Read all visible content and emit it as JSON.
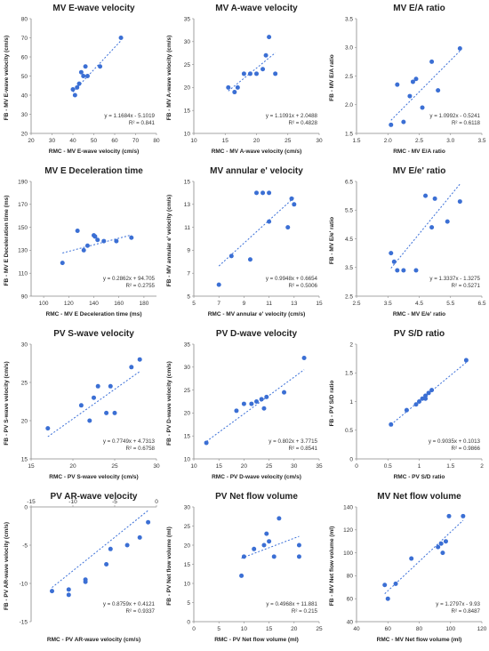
{
  "chart_data": [
    {
      "type": "scatter",
      "title": "MV E-wave velocity",
      "xlabel": "RMC - MV E-wave velocity (cm/s)",
      "ylabel": "FB - MV E-wave velocity (cm/s)",
      "xlim": [
        20,
        80
      ],
      "ylim": [
        20,
        80
      ],
      "xticks": [
        "20",
        "30",
        "40",
        "50",
        "60",
        "70",
        "80"
      ],
      "yticks": [
        "20",
        "30",
        "40",
        "50",
        "60",
        "70",
        "80"
      ],
      "equation": "y = 1.1684x - 5.1019",
      "r2": "R² = 0.841",
      "trend": {
        "slope": 1.1684,
        "intercept": -5.1019
      },
      "x": [
        40,
        41,
        42,
        43,
        44,
        45,
        46,
        47,
        53,
        63
      ],
      "y": [
        43,
        40,
        44,
        46,
        52,
        50,
        55,
        50,
        55,
        70
      ]
    },
    {
      "type": "scatter",
      "title": "MV A-wave velocity",
      "xlabel": "RMC - MV A-wave velocity (cm/s)",
      "ylabel": "FB - MV A-wave velocity (cm/s)",
      "xlim": [
        10,
        30
      ],
      "ylim": [
        10,
        35
      ],
      "xticks": [
        "10",
        "15",
        "20",
        "25",
        "30"
      ],
      "yticks": [
        "10",
        "15",
        "20",
        "25",
        "30",
        "35"
      ],
      "equation": "y = 1.1091x + 2.0488",
      "r2": "R² = 0.4828",
      "trend": {
        "slope": 1.1091,
        "intercept": 2.0488
      },
      "x": [
        15.5,
        16.5,
        17,
        18,
        19,
        20,
        21,
        21.5,
        22,
        23
      ],
      "y": [
        20,
        19,
        20,
        23,
        23,
        23,
        24,
        27,
        31,
        23
      ]
    },
    {
      "type": "scatter",
      "title": "MV E/A ratio",
      "xlabel": "RMC - MV E/A ratio",
      "ylabel": "FB - MV E/A ratio",
      "xlim": [
        1.5,
        3.5
      ],
      "ylim": [
        1.5,
        3.5
      ],
      "xticks": [
        "1.5",
        "2.0",
        "2.5",
        "3.0",
        "3.5"
      ],
      "yticks": [
        "1.5",
        "2.0",
        "2.5",
        "3.0",
        "3.5"
      ],
      "equation": "y = 1.0992x - 0.5241",
      "r2": "R² = 0.6118",
      "trend": {
        "slope": 1.0992,
        "intercept": -0.5241
      },
      "x": [
        2.05,
        2.15,
        2.25,
        2.35,
        2.4,
        2.45,
        2.55,
        2.7,
        2.8,
        3.15
      ],
      "y": [
        1.65,
        2.35,
        1.7,
        2.15,
        2.4,
        2.45,
        1.95,
        2.75,
        2.25,
        2.98
      ]
    },
    {
      "type": "scatter",
      "title": "MV E Deceleration time",
      "xlabel": "RMC - MV E Deceleration time (ms)",
      "ylabel": "FB - MV E Deceleration time (ms)",
      "xlim": [
        90,
        190
      ],
      "ylim": [
        90,
        190
      ],
      "xticks": [
        "100",
        "120",
        "140",
        "160",
        "180"
      ],
      "yticks": [
        "90",
        "110",
        "130",
        "150",
        "170",
        "190"
      ],
      "equation": "y = 0.2862x + 94.705",
      "r2": "R² = 0.2755",
      "trend": {
        "slope": 0.2862,
        "intercept": 94.705
      },
      "x": [
        115,
        127,
        132,
        135,
        140,
        141,
        143,
        148,
        158,
        170
      ],
      "y": [
        119,
        147,
        130,
        134,
        143,
        142,
        139,
        138,
        138,
        141
      ]
    },
    {
      "type": "scatter",
      "title": "MV annular e' velocity",
      "xlabel": "RMC - MV annular e' velocity (cm/s)",
      "ylabel": "FB - MV annular e' velocity (cm/s)",
      "xlim": [
        5,
        15
      ],
      "ylim": [
        5,
        15
      ],
      "xticks": [
        "5",
        "7",
        "9",
        "11",
        "13",
        "15"
      ],
      "yticks": [
        "5",
        "7",
        "9",
        "11",
        "13",
        "15"
      ],
      "equation": "y = 0.9948x + 0.6654",
      "r2": "R² = 0.5006",
      "trend": {
        "slope": 0.9948,
        "intercept": 0.6654
      },
      "x": [
        7,
        8,
        9.5,
        10,
        10.5,
        11,
        11,
        12.5,
        12.8,
        13
      ],
      "y": [
        6,
        8.5,
        8.2,
        14,
        14,
        11.5,
        14,
        11,
        13.5,
        13
      ]
    },
    {
      "type": "scatter",
      "title": "MV E/e' ratio",
      "xlabel": "RMC - MV E/e' ratio",
      "ylabel": "FB - MV E/e' ratio",
      "xlim": [
        2.5,
        6.5
      ],
      "ylim": [
        2.5,
        6.5
      ],
      "xticks": [
        "2.5",
        "3.5",
        "4.5",
        "5.5",
        "6.5"
      ],
      "yticks": [
        "2.5",
        "3.5",
        "4.5",
        "5.5",
        "6.5"
      ],
      "equation": "y = 1.3337x - 1.3275",
      "r2": "R² = 0.5271",
      "trend": {
        "slope": 1.3337,
        "intercept": -1.3275
      },
      "x": [
        3.6,
        3.7,
        3.8,
        4.0,
        4.4,
        4.7,
        4.9,
        5.0,
        5.4,
        5.8
      ],
      "y": [
        4.0,
        3.7,
        3.4,
        3.4,
        3.4,
        6.0,
        4.9,
        5.9,
        5.1,
        5.8
      ]
    },
    {
      "type": "scatter",
      "title": "PV S-wave velocity",
      "xlabel": "RMC - PV S-wave velocity (cm/s)",
      "ylabel": "FB - PV S-wave velocity (cm/s)",
      "xlim": [
        15,
        30
      ],
      "ylim": [
        15,
        30
      ],
      "xticks": [
        "15",
        "20",
        "25",
        "30"
      ],
      "yticks": [
        "15",
        "20",
        "25",
        "30"
      ],
      "equation": "y = 0.7749x + 4.7313",
      "r2": "R² = 0.6758",
      "trend": {
        "slope": 0.7749,
        "intercept": 4.7313
      },
      "x": [
        17,
        21,
        22,
        22.5,
        23,
        24,
        24.5,
        25,
        27,
        28
      ],
      "y": [
        19,
        22,
        20,
        23,
        24.5,
        21,
        24.5,
        21,
        27,
        28
      ]
    },
    {
      "type": "scatter",
      "title": "PV D-wave velocity",
      "xlabel": "RMC - PV D-wave velocity (cm/s)",
      "ylabel": "FB - PV D-wave velocity (cm/s)",
      "xlim": [
        10,
        35
      ],
      "ylim": [
        10,
        35
      ],
      "xticks": [
        "10",
        "15",
        "20",
        "25",
        "30",
        "35"
      ],
      "yticks": [
        "10",
        "15",
        "20",
        "25",
        "30",
        "35"
      ],
      "equation": "y = 0.802x + 3.7715",
      "r2": "R² = 0.8541",
      "trend": {
        "slope": 0.802,
        "intercept": 3.7715
      },
      "x": [
        12.5,
        18.5,
        20,
        21.5,
        22.5,
        23.5,
        24,
        24.5,
        28,
        32
      ],
      "y": [
        13.5,
        20.5,
        22,
        22,
        22.5,
        23,
        21,
        23.5,
        24.5,
        32
      ]
    },
    {
      "type": "scatter",
      "title": "PV S/D ratio",
      "xlabel": "RMC - PV S/D ratio",
      "ylabel": "FB - PV S/D ratio",
      "xlim": [
        0,
        2
      ],
      "ylim": [
        0,
        2
      ],
      "xticks": [
        "0",
        "0.5",
        "1",
        "1.5",
        "2"
      ],
      "yticks": [
        "0",
        "0.5",
        "1",
        "1.5",
        "2"
      ],
      "equation": "y = 0.9035x + 0.1013",
      "r2": "R² = 0.9866",
      "trend": {
        "slope": 0.9035,
        "intercept": 0.1013
      },
      "x": [
        0.55,
        0.8,
        0.95,
        1.0,
        1.05,
        1.1,
        1.1,
        1.15,
        1.2,
        1.75
      ],
      "y": [
        0.6,
        0.85,
        0.95,
        1.0,
        1.05,
        1.1,
        1.05,
        1.15,
        1.2,
        1.72
      ]
    },
    {
      "type": "scatter",
      "title": "PV AR-wave velocity",
      "xlabel": "RMC - PV AR-wave velocity (cm/s)",
      "ylabel": "FB - PV AR-wave velocity (cm/s)",
      "xlim": [
        -15,
        0
      ],
      "ylim": [
        -15,
        0
      ],
      "xticks": [
        "-15",
        "-10",
        "-5",
        "0"
      ],
      "yticks": [
        "0",
        "-5",
        "-10",
        "-15"
      ],
      "x_axis_position": "top",
      "equation": "y = 0.8759x + 0.4121",
      "r2": "R² = 0.9337",
      "trend": {
        "slope": 0.8759,
        "intercept": 0.4121
      },
      "x": [
        -12.5,
        -10.5,
        -10.5,
        -8.5,
        -8.5,
        -6,
        -5.5,
        -3.5,
        -2,
        -1
      ],
      "y": [
        -11,
        -11.5,
        -10.8,
        -9.5,
        -9.8,
        -7.5,
        -5.5,
        -5,
        -4,
        -2
      ]
    },
    {
      "type": "scatter",
      "title": "PV Net flow volume",
      "xlabel": "RMC - PV Net flow volume (ml)",
      "ylabel": "FB - PV Net flow volume (ml)",
      "xlim": [
        0,
        25
      ],
      "ylim": [
        0,
        30
      ],
      "xticks": [
        "0",
        "5",
        "10",
        "15",
        "20",
        "25"
      ],
      "yticks": [
        "0",
        "5",
        "10",
        "15",
        "20",
        "25",
        "30"
      ],
      "equation": "y = 0.4968x + 11.881",
      "r2": "R² = 0.215",
      "trend": {
        "slope": 0.4968,
        "intercept": 11.881
      },
      "x": [
        9.5,
        10,
        12,
        14,
        14.5,
        15,
        16,
        17,
        21,
        21
      ],
      "y": [
        12,
        17,
        19,
        20,
        23,
        21,
        17,
        27,
        20,
        17
      ]
    },
    {
      "type": "scatter",
      "title": "MV Net flow volume",
      "xlabel": "RMC - MV Net flow volume (ml)",
      "ylabel": "FB - MV Net flow volume (ml)",
      "xlim": [
        40,
        120
      ],
      "ylim": [
        40,
        140
      ],
      "xticks": [
        "40",
        "60",
        "80",
        "100",
        "120"
      ],
      "yticks": [
        "40",
        "60",
        "80",
        "100",
        "120",
        "140"
      ],
      "equation": "y = 1.2797x - 9.93",
      "r2": "R² = 0.8487",
      "trend": {
        "slope": 1.2797,
        "intercept": -9.93
      },
      "x": [
        58,
        60,
        65,
        75,
        92,
        94,
        95,
        97,
        99,
        108
      ],
      "y": [
        72,
        60,
        73,
        95,
        105,
        108,
        100,
        110,
        132,
        132
      ]
    }
  ]
}
